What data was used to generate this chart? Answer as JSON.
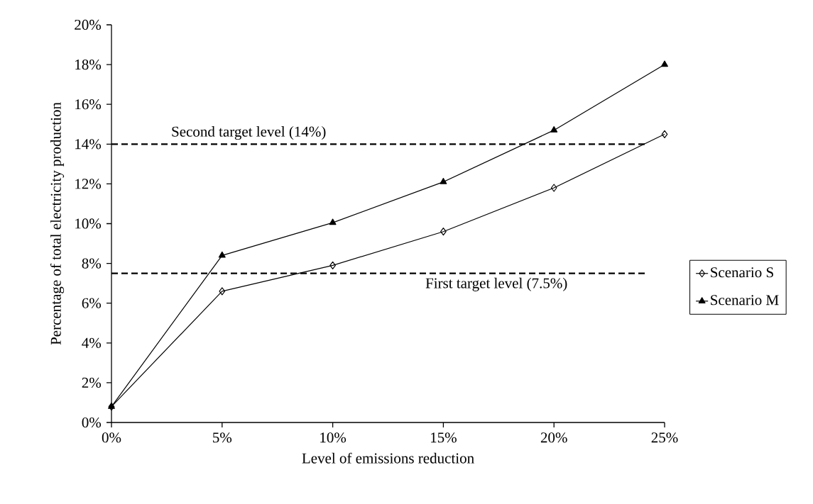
{
  "chart_data": {
    "type": "line",
    "xlabel": "Level of emissions reduction",
    "ylabel": "Percentage of total electricity production",
    "x": [
      0,
      5,
      10,
      15,
      20,
      25
    ],
    "series": [
      {
        "name": "Scenario S",
        "color": "#000000",
        "marker": "diamond",
        "values": [
          0.8,
          6.6,
          7.9,
          9.6,
          11.8,
          14.5
        ]
      },
      {
        "name": "Scenario M",
        "color": "#000000",
        "marker": "triangle",
        "values": [
          0.8,
          8.4,
          10.05,
          12.1,
          14.7,
          18.0
        ]
      }
    ],
    "xlim": [
      0,
      25
    ],
    "ylim": [
      0,
      20
    ],
    "xticks": [
      {
        "value": 0,
        "label": "0%"
      },
      {
        "value": 5,
        "label": "5%"
      },
      {
        "value": 10,
        "label": "10%"
      },
      {
        "value": 15,
        "label": "15%"
      },
      {
        "value": 20,
        "label": "20%"
      },
      {
        "value": 25,
        "label": "25%"
      }
    ],
    "yticks": [
      {
        "value": 0,
        "label": "0%"
      },
      {
        "value": 2,
        "label": "2%"
      },
      {
        "value": 4,
        "label": "4%"
      },
      {
        "value": 6,
        "label": "6%"
      },
      {
        "value": 8,
        "label": "8%"
      },
      {
        "value": 10,
        "label": "10%"
      },
      {
        "value": 12,
        "label": "12%"
      },
      {
        "value": 14,
        "label": "14%"
      },
      {
        "value": 16,
        "label": "16%"
      },
      {
        "value": 18,
        "label": "18%"
      },
      {
        "value": 20,
        "label": "20%"
      }
    ],
    "ref_lines": [
      {
        "axis": "y",
        "value": 7.5,
        "label": "First target level (7.5%)",
        "color": "#000000",
        "line_style": "dashed"
      },
      {
        "axis": "y",
        "value": 14,
        "label": "Second target level (14%)",
        "color": "#000000",
        "line_style": "dashed"
      }
    ],
    "grid": false,
    "legend": "right",
    "line_style": "solid"
  }
}
